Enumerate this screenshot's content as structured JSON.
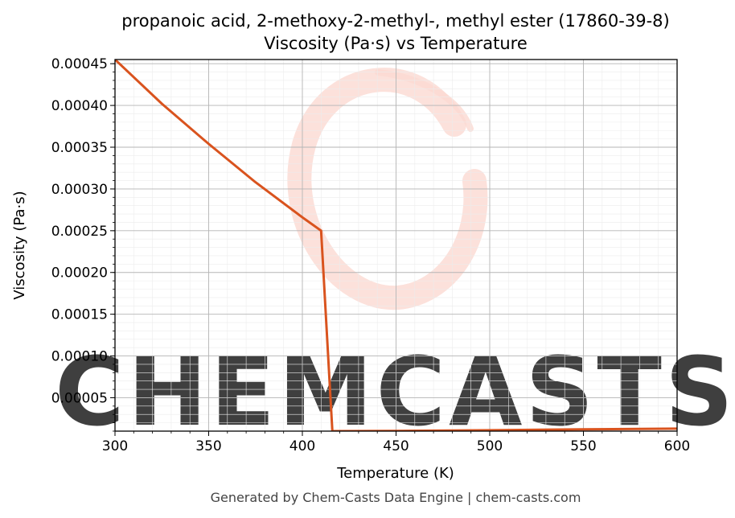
{
  "chart_data": {
    "type": "line",
    "title": "propanoic acid, 2-methoxy-2-methyl-, methyl ester (17860-39-8)",
    "subtitle": "Viscosity (Pa·s) vs Temperature",
    "xlabel": "Temperature (K)",
    "ylabel": "Viscosity (Pa·s)",
    "xlim": [
      300,
      600
    ],
    "ylim": [
      1e-05,
      0.000455
    ],
    "xticks": [
      300,
      350,
      400,
      450,
      500,
      550,
      600
    ],
    "xtick_labels": [
      "300",
      "350",
      "400",
      "450",
      "500",
      "550",
      "600"
    ],
    "yticks": [
      5e-05,
      0.0001,
      0.00015,
      0.0002,
      0.00025,
      0.0003,
      0.00035,
      0.0004,
      0.00045
    ],
    "ytick_labels": [
      "0.00005",
      "0.00010",
      "0.00015",
      "0.00020",
      "0.00025",
      "0.00030",
      "0.00035",
      "0.00040",
      "0.00045"
    ],
    "grid": true,
    "series": [
      {
        "color": "#d9531e",
        "x": [
          300,
          325,
          350,
          375,
          400,
          410,
          416,
          450,
          500,
          550,
          600
        ],
        "y": [
          0.000455,
          0.000402,
          0.000354,
          0.000308,
          0.000266,
          0.00025,
          1e-05,
          1.03e-05,
          1.11e-05,
          1.21e-05,
          1.3e-05
        ]
      }
    ]
  },
  "watermark": {
    "text": "CHEMCASTS",
    "color": "#fbd9d2"
  },
  "footer": "Generated by Chem-Casts Data Engine | chem-casts.com"
}
